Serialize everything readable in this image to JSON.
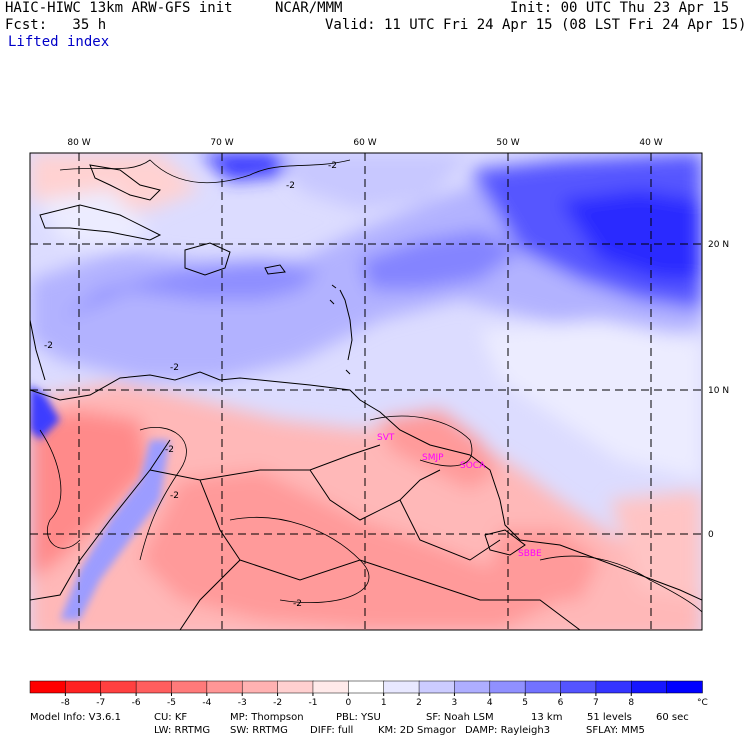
{
  "header": {
    "title_left": "HAIC-HIWC 13km ARW-GFS init",
    "org": "NCAR/MMM",
    "fcst_label": "Fcst:   35 h",
    "init": "Init: 00 UTC Thu 23 Apr 15",
    "valid": "Valid: 11 UTC Fri 24 Apr 15 (08 LST Fri 24 Apr 15)",
    "field": "Lifted index"
  },
  "map": {
    "lon_labels": [
      "80 W",
      "70 W",
      "60 W",
      "50 W",
      "40 W"
    ],
    "lat_labels": [
      "20 N",
      "10 N",
      "0"
    ],
    "contour_labels": [
      "-2",
      "-2",
      "-2",
      "-2",
      "-2",
      "-2",
      "-2"
    ],
    "stations": [
      "SVT",
      "SMJP",
      "SOCA",
      "SBBE"
    ],
    "station_color": "#ff00ff"
  },
  "colorbar": {
    "ticks": [
      "-8",
      "-7",
      "-6",
      "-5",
      "-4",
      "-3",
      "-2",
      "-1",
      "0",
      "1",
      "2",
      "3",
      "4",
      "5",
      "6",
      "7",
      "8"
    ],
    "unit": "°C",
    "colors": [
      "#ff0000",
      "#ff2222",
      "#ff4040",
      "#ff5e5e",
      "#ff7a7a",
      "#ff9696",
      "#ffb2b2",
      "#ffd0d0",
      "#ffeaea",
      "#ffffff",
      "#e8e8ff",
      "#ccccff",
      "#aeaeff",
      "#9090ff",
      "#7272ff",
      "#5454ff",
      "#3434ff",
      "#1616ff",
      "#0000ff"
    ]
  },
  "footer": {
    "line1": [
      "Model Info: V3.6.1",
      "CU: KF",
      "MP: Thompson",
      "PBL: YSU",
      "SF: Noah LSM",
      "13 km",
      "51 levels",
      "60 sec"
    ],
    "line2": [
      "LW: RRTMG",
      "SW: RRTMG",
      "DIFF: full",
      "KM: 2D Smagor",
      "DAMP: Rayleigh3",
      "SFLAY: MM5"
    ]
  }
}
